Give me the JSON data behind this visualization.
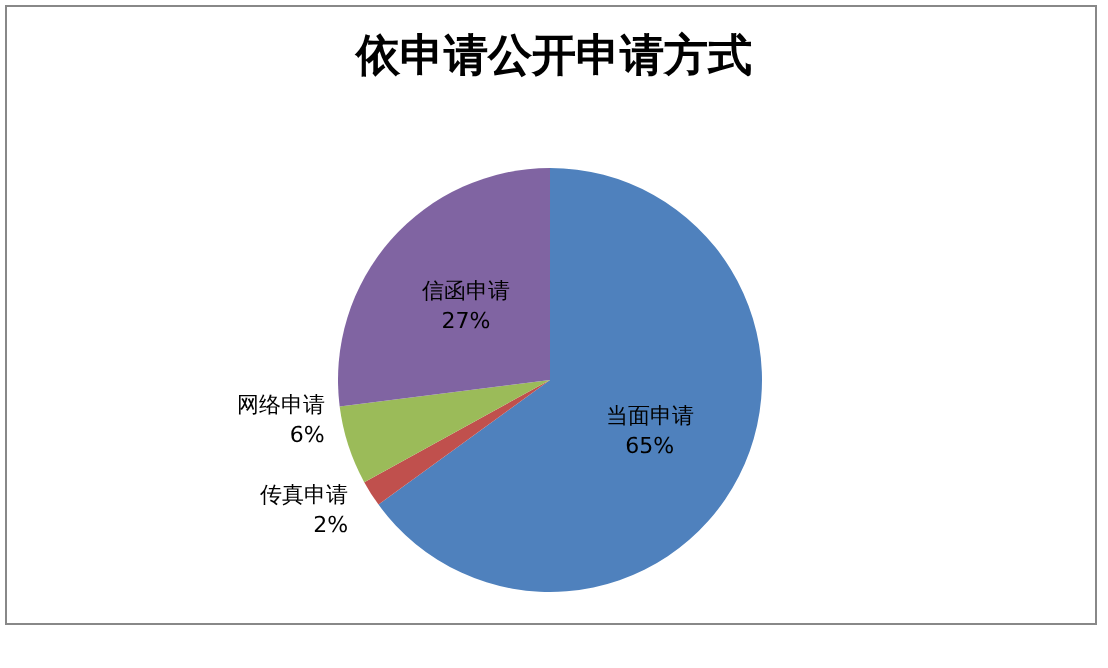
{
  "chart_data": {
    "type": "pie",
    "title": "依申请公开申请方式",
    "categories": [
      "当面申请",
      "传真申请",
      "网络申请",
      "信函申请"
    ],
    "values": [
      65,
      2,
      6,
      27
    ],
    "colors": [
      "#4f81bd",
      "#c0504d",
      "#9bbb59",
      "#8064a2"
    ],
    "value_labels": [
      "65%",
      "2%",
      "6%",
      "27%"
    ],
    "legend": false
  }
}
